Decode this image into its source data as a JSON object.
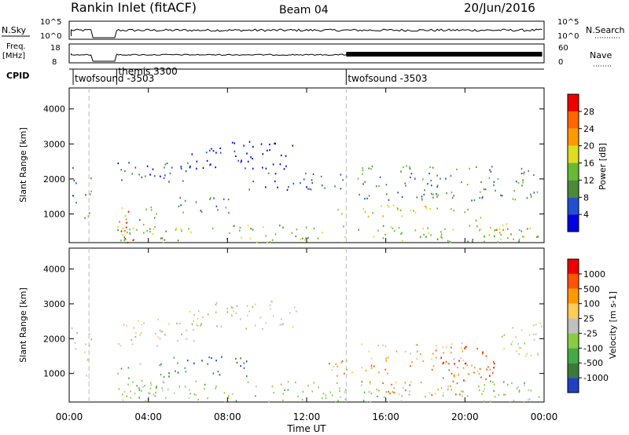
{
  "header": {
    "title": "Rankin Inlet (fitACF)",
    "beam": "Beam 04",
    "date": "20/Jun/2016"
  },
  "panels": {
    "nsky_label": "N.Sky",
    "nsky_ticks": [
      "10^5",
      "10^0"
    ],
    "nsearch_label": "N.Search",
    "nsearch_ticks": [
      "10^5",
      "10^0"
    ],
    "freq_label": "Freq.",
    "freq_unit": "[MHz]",
    "freq_ticks": [
      "18",
      "8"
    ],
    "nave_label": "Nave",
    "nave_ticks": [
      "60",
      "0"
    ],
    "cpid_label": "CPID",
    "cpid_modes": [
      {
        "name": "twofsound -3503",
        "start_hr": 0.2
      },
      {
        "name": "themis 3300",
        "start_hr": 2.4
      },
      {
        "name": "twofsound -3503",
        "start_hr": 14.0
      }
    ]
  },
  "chart_data": [
    {
      "type": "heatmap",
      "name": "power",
      "ylabel": "Slant Range [km]",
      "ylim": [
        180,
        4600
      ],
      "yticks": [
        "1000",
        "2000",
        "3000",
        "4000"
      ],
      "xlim": [
        0,
        24
      ],
      "colorbar_label": "Power [dB]",
      "colorbar_ticks": [
        "28",
        "24",
        "20",
        "16",
        "12",
        "8",
        "4"
      ],
      "colors": [
        "#0000e0",
        "#2050d0",
        "#4a8a3a",
        "#66bb33",
        "#dddd22",
        "#ff9900",
        "#ff6600",
        "#ee0000"
      ],
      "regions": [
        {
          "t": [
            0.1,
            0.4
          ],
          "r": [
            900,
            2400
          ],
          "c": 1
        },
        {
          "t": [
            0.7,
            1.1
          ],
          "r": [
            900,
            2400
          ],
          "c": 2
        },
        {
          "t": [
            2.5,
            3.3
          ],
          "r": [
            200,
            1200
          ],
          "c": 7
        },
        {
          "t": [
            2.6,
            4.5
          ],
          "r": [
            300,
            1300
          ],
          "c": 3
        },
        {
          "t": [
            2.4,
            6.0
          ],
          "r": [
            1800,
            2500
          ],
          "c": 1
        },
        {
          "t": [
            5.5,
            8.5
          ],
          "r": [
            1000,
            1500
          ],
          "c": 2
        },
        {
          "t": [
            6.0,
            11.5
          ],
          "r": [
            2300,
            3100
          ],
          "c": 0
        },
        {
          "t": [
            9.0,
            14.0
          ],
          "r": [
            1700,
            2200
          ],
          "c": 1
        },
        {
          "t": [
            13.5,
            20.5
          ],
          "r": [
            950,
            1300
          ],
          "c": 4
        },
        {
          "t": [
            14.5,
            23.8
          ],
          "r": [
            1400,
            2400
          ],
          "c": 2
        },
        {
          "t": [
            2.4,
            23.9
          ],
          "r": [
            200,
            700
          ],
          "c": 3
        },
        {
          "t": [
            20.5,
            22.5
          ],
          "r": [
            400,
            1000
          ],
          "c": 5
        }
      ]
    },
    {
      "type": "heatmap",
      "name": "velocity",
      "ylabel": "Slant Range [km]",
      "xlabel": "Time UT",
      "ylim": [
        180,
        4600
      ],
      "yticks": [
        "1000",
        "2000",
        "3000",
        "4000"
      ],
      "xlim": [
        0,
        24
      ],
      "xticks": [
        "00:00",
        "04:00",
        "08:00",
        "12:00",
        "16:00",
        "20:00",
        "00:00"
      ],
      "colorbar_label": "Velocity [m s-1]",
      "colorbar_ticks": [
        "1000",
        "500",
        "100",
        "25",
        "-25",
        "-100",
        "-500",
        "-1000"
      ],
      "colors": [
        "#2040c0",
        "#3a7a3a",
        "#44aa44",
        "#88cc44",
        "#c0c0c0",
        "#ffcc55",
        "#ff9900",
        "#ff5500",
        "#ee0000"
      ],
      "regions": [
        {
          "t": [
            0.1,
            0.4
          ],
          "r": [
            900,
            2400
          ],
          "c": 4
        },
        {
          "t": [
            0.7,
            1.1
          ],
          "r": [
            900,
            2400
          ],
          "c": 4
        },
        {
          "t": [
            2.4,
            6.5
          ],
          "r": [
            1800,
            2600
          ],
          "c": 4
        },
        {
          "t": [
            2.4,
            5.0
          ],
          "r": [
            300,
            1300
          ],
          "c": 3
        },
        {
          "t": [
            6.0,
            11.5
          ],
          "r": [
            2300,
            3100
          ],
          "c": 4
        },
        {
          "t": [
            5.0,
            9.0
          ],
          "r": [
            900,
            1500
          ],
          "c": 1
        },
        {
          "t": [
            13.0,
            21.0
          ],
          "r": [
            950,
            1400
          ],
          "c": 6
        },
        {
          "t": [
            14.5,
            20.0
          ],
          "r": [
            1400,
            1900
          ],
          "c": 5
        },
        {
          "t": [
            18.5,
            21.5
          ],
          "r": [
            800,
            1800
          ],
          "c": 7
        },
        {
          "t": [
            21.5,
            23.9
          ],
          "r": [
            1500,
            2500
          ],
          "c": 4
        },
        {
          "t": [
            2.4,
            23.9
          ],
          "r": [
            200,
            800
          ],
          "c": 3
        },
        {
          "t": [
            15.0,
            20.0
          ],
          "r": [
            400,
            800
          ],
          "c": 6
        }
      ]
    }
  ]
}
